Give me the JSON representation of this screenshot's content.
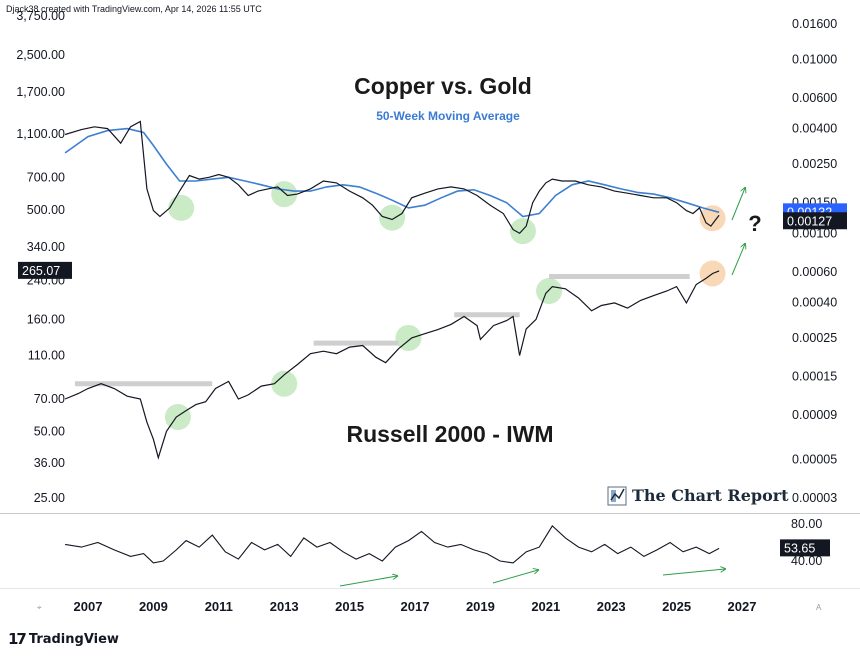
{
  "header": {
    "credit": "Djack38 created with TradingView.com, Apr 14, 2026 11:55 UTC"
  },
  "footer": {
    "logo_text": "TradingView",
    "logo_mark": "17"
  },
  "annotations": {
    "title_top": "Copper vs. Gold",
    "subtitle_top": "50-Week Moving Average",
    "title_bottom": "Russell 2000 - IWM",
    "question_mark": "?",
    "brand": "The Chart Report",
    "corner_left": "⌖",
    "corner_right": "A"
  },
  "colors": {
    "price_line": "#131722",
    "moving_average": "#3d7fd1",
    "highlight_green": "#a8dca0",
    "highlight_orange": "#f6c89a",
    "resistance": "#cfcfcf",
    "arrow_green": "#2e9e4a",
    "badge_blue": "#2962ff",
    "badge_black": "#131722"
  },
  "chart_data": [
    {
      "type": "line",
      "title": "Copper vs. Gold",
      "subtitle": "50-Week Moving Average",
      "scale": "log",
      "y_ticks": [
        "0.01600",
        "0.01000",
        "0.00600",
        "0.00400",
        "0.00250",
        "0.00150",
        "0.00100",
        "0.00060",
        "0.00040",
        "0.00025",
        "0.00015",
        "0.00009",
        "0.00005",
        "0.00003"
      ],
      "last_value_label": "0.00127",
      "moving_average_label": "0.00132",
      "series": [
        {
          "name": "",
          "x": [
            2006.3,
            2006.8,
            2007.2,
            2007.6,
            2008.0,
            2008.3,
            2008.6,
            2008.8,
            2009.0,
            2009.2,
            2009.5,
            2009.8,
            2010.1,
            2010.4,
            2010.7,
            2011.0,
            2011.3,
            2011.6,
            2011.9,
            2012.2,
            2012.5,
            2012.8,
            2013.1,
            2013.4,
            2013.8,
            2014.2,
            2014.6,
            2015.0,
            2015.4,
            2015.7,
            2016.0,
            2016.3,
            2016.6,
            2016.9,
            2017.3,
            2017.7,
            2018.1,
            2018.5,
            2018.9,
            2019.3,
            2019.7,
            2020.0,
            2020.2,
            2020.4,
            2020.6,
            2020.8,
            2021.0,
            2021.2,
            2021.5,
            2021.9,
            2022.3,
            2022.7,
            2023.1,
            2023.5,
            2023.9,
            2024.3,
            2024.7,
            2025.0,
            2025.3,
            2025.5,
            2025.7,
            2025.9,
            2026.05,
            2026.2,
            2026.3
          ],
          "y": [
            0.0037,
            0.00395,
            0.0041,
            0.004,
            0.0033,
            0.0041,
            0.0044,
            0.0018,
            0.00135,
            0.00125,
            0.0014,
            0.00175,
            0.00215,
            0.00205,
            0.0021,
            0.00218,
            0.0021,
            0.0019,
            0.00165,
            0.00175,
            0.0018,
            0.00185,
            0.00165,
            0.00168,
            0.0018,
            0.002,
            0.00195,
            0.00175,
            0.0016,
            0.00145,
            0.00125,
            0.0012,
            0.0013,
            0.0016,
            0.0017,
            0.0018,
            0.00185,
            0.0018,
            0.00165,
            0.00145,
            0.0013,
            0.00105,
            0.001,
            0.0011,
            0.0015,
            0.00175,
            0.00195,
            0.00205,
            0.002,
            0.002,
            0.0019,
            0.00185,
            0.00175,
            0.0017,
            0.00165,
            0.0016,
            0.0016,
            0.0015,
            0.00135,
            0.0013,
            0.0014,
            0.00115,
            0.0011,
            0.0012,
            0.00127
          ]
        },
        {
          "name": "",
          "x": [
            2006.3,
            2007.0,
            2007.6,
            2008.2,
            2008.7,
            2009.0,
            2009.4,
            2009.8,
            2010.3,
            2010.8,
            2011.3,
            2011.8,
            2012.3,
            2012.8,
            2013.3,
            2013.8,
            2014.3,
            2014.8,
            2015.3,
            2015.8,
            2016.3,
            2016.8,
            2017.3,
            2017.8,
            2018.3,
            2018.8,
            2019.3,
            2019.8,
            2020.3,
            2020.8,
            2021.3,
            2021.8,
            2022.3,
            2022.8,
            2023.3,
            2023.8,
            2024.3,
            2024.8,
            2025.3,
            2025.8,
            2026.3
          ],
          "y": [
            0.0029,
            0.0036,
            0.0039,
            0.004,
            0.0038,
            0.0032,
            0.0025,
            0.002,
            0.002,
            0.00205,
            0.0021,
            0.002,
            0.0019,
            0.0018,
            0.00175,
            0.00175,
            0.00185,
            0.0019,
            0.00185,
            0.0017,
            0.00155,
            0.0014,
            0.00145,
            0.0016,
            0.00175,
            0.00178,
            0.00165,
            0.0015,
            0.00125,
            0.0013,
            0.00165,
            0.0019,
            0.002,
            0.0019,
            0.0018,
            0.00172,
            0.00168,
            0.0016,
            0.0015,
            0.0014,
            0.00132
          ]
        }
      ]
    },
    {
      "type": "line",
      "title": "Russell 2000 - IWM",
      "scale": "log",
      "y_ticks": [
        "3,750.00",
        "2,500.00",
        "1,700.00",
        "1,100.00",
        "700.00",
        "500.00",
        "340.00",
        "240.00",
        "160.00",
        "110.00",
        "70.00",
        "50.00",
        "36.00",
        "25.00"
      ],
      "last_value_label": "265.07",
      "series": [
        {
          "name": "",
          "x": [
            2006.3,
            2006.7,
            2007.0,
            2007.4,
            2007.8,
            2008.2,
            2008.6,
            2008.8,
            2009.0,
            2009.15,
            2009.4,
            2009.7,
            2010.0,
            2010.3,
            2010.6,
            2010.9,
            2011.3,
            2011.6,
            2011.9,
            2012.3,
            2012.7,
            2013.0,
            2013.4,
            2013.8,
            2014.2,
            2014.6,
            2015.0,
            2015.4,
            2015.8,
            2016.1,
            2016.5,
            2016.9,
            2017.3,
            2017.7,
            2018.1,
            2018.5,
            2018.9,
            2019.0,
            2019.4,
            2019.8,
            2020.0,
            2020.2,
            2020.4,
            2020.7,
            2021.0,
            2021.2,
            2021.6,
            2022.0,
            2022.4,
            2022.7,
            2023.1,
            2023.5,
            2023.9,
            2024.3,
            2024.7,
            2025.0,
            2025.3,
            2025.6,
            2025.9,
            2026.1,
            2026.3
          ],
          "y": [
            70,
            74,
            78,
            82,
            78,
            72,
            70,
            55,
            46,
            38,
            50,
            58,
            62,
            66,
            68,
            78,
            84,
            70,
            73,
            80,
            82,
            90,
            100,
            112,
            115,
            112,
            120,
            122,
            108,
            102,
            118,
            132,
            138,
            144,
            152,
            165,
            150,
            130,
            150,
            158,
            165,
            110,
            145,
            160,
            210,
            225,
            220,
            200,
            175,
            185,
            190,
            180,
            195,
            205,
            215,
            225,
            190,
            230,
            245,
            258,
            265
          ]
        }
      ]
    },
    {
      "type": "line",
      "title": "",
      "y_ticks": [
        "80.00",
        "40.00"
      ],
      "last_value_label": "53.65",
      "series": [
        {
          "name": "",
          "x": [
            2006.3,
            2006.8,
            2007.3,
            2007.8,
            2008.3,
            2008.7,
            2009.0,
            2009.3,
            2009.7,
            2010.0,
            2010.4,
            2010.8,
            2011.2,
            2011.6,
            2012.0,
            2012.4,
            2012.8,
            2013.2,
            2013.6,
            2014.0,
            2014.4,
            2014.8,
            2015.2,
            2015.6,
            2016.0,
            2016.4,
            2016.8,
            2017.2,
            2017.6,
            2018.0,
            2018.4,
            2018.8,
            2019.2,
            2019.6,
            2020.0,
            2020.4,
            2020.8,
            2021.2,
            2021.6,
            2022.0,
            2022.4,
            2022.8,
            2023.2,
            2023.6,
            2024.0,
            2024.4,
            2024.8,
            2025.2,
            2025.6,
            2026.0,
            2026.3
          ],
          "y": [
            58,
            55,
            60,
            52,
            45,
            48,
            38,
            40,
            52,
            62,
            55,
            68,
            50,
            42,
            60,
            52,
            58,
            45,
            65,
            55,
            60,
            50,
            42,
            48,
            40,
            55,
            62,
            72,
            60,
            55,
            58,
            52,
            48,
            40,
            38,
            50,
            55,
            78,
            65,
            55,
            50,
            58,
            48,
            55,
            45,
            52,
            60,
            50,
            55,
            48,
            53.65
          ]
        }
      ]
    }
  ],
  "x_axis_labels": [
    "2007",
    "2009",
    "2011",
    "2013",
    "2015",
    "2017",
    "2019",
    "2021",
    "2023",
    "2025",
    "2027"
  ]
}
